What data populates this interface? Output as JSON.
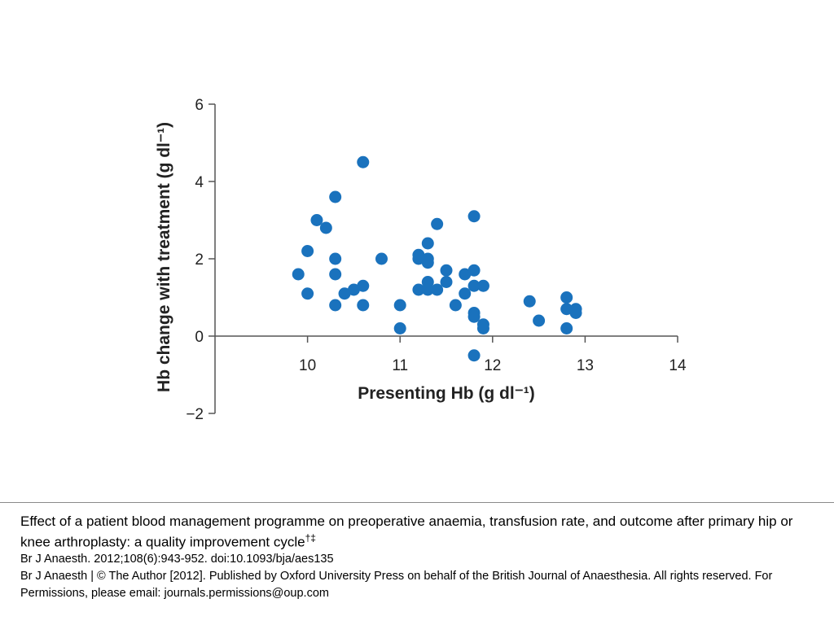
{
  "chart_data": {
    "type": "scatter",
    "title": "",
    "xlabel": "Presenting Hb (g dl⁻¹)",
    "ylabel": "Hb change with treatment (g dl⁻¹)",
    "xlim": [
      9,
      14
    ],
    "ylim": [
      -2,
      6
    ],
    "x_ticks": [
      "10",
      "11",
      "12",
      "13",
      "14"
    ],
    "y_ticks": [
      "−2",
      "0",
      "2",
      "4",
      "6"
    ],
    "grid": false,
    "legend": "none",
    "marker_color": "#1a72bd",
    "series": [
      {
        "points": [
          [
            9.9,
            1.6
          ],
          [
            10.0,
            2.2
          ],
          [
            10.0,
            1.1
          ],
          [
            10.1,
            3.0
          ],
          [
            10.2,
            2.8
          ],
          [
            10.3,
            3.6
          ],
          [
            10.3,
            2.0
          ],
          [
            10.3,
            1.6
          ],
          [
            10.3,
            0.8
          ],
          [
            10.4,
            1.1
          ],
          [
            10.5,
            1.2
          ],
          [
            10.6,
            4.5
          ],
          [
            10.6,
            1.3
          ],
          [
            10.6,
            0.8
          ],
          [
            10.8,
            2.0
          ],
          [
            11.0,
            0.8
          ],
          [
            11.0,
            0.2
          ],
          [
            11.2,
            2.1
          ],
          [
            11.2,
            2.0
          ],
          [
            11.2,
            1.2
          ],
          [
            11.3,
            2.4
          ],
          [
            11.3,
            2.0
          ],
          [
            11.3,
            1.9
          ],
          [
            11.3,
            1.4
          ],
          [
            11.3,
            1.2
          ],
          [
            11.4,
            2.9
          ],
          [
            11.4,
            1.2
          ],
          [
            11.5,
            1.7
          ],
          [
            11.5,
            1.4
          ],
          [
            11.6,
            0.8
          ],
          [
            11.7,
            1.6
          ],
          [
            11.7,
            1.1
          ],
          [
            11.8,
            3.1
          ],
          [
            11.8,
            1.7
          ],
          [
            11.8,
            1.3
          ],
          [
            11.8,
            0.6
          ],
          [
            11.8,
            0.5
          ],
          [
            11.8,
            -0.5
          ],
          [
            11.9,
            1.3
          ],
          [
            11.9,
            0.3
          ],
          [
            11.9,
            0.2
          ],
          [
            12.4,
            0.9
          ],
          [
            12.5,
            0.4
          ],
          [
            12.8,
            1.0
          ],
          [
            12.8,
            0.7
          ],
          [
            12.8,
            0.2
          ],
          [
            12.9,
            0.7
          ],
          [
            12.9,
            0.6
          ]
        ]
      }
    ]
  },
  "caption": {
    "title": "Effect of a patient blood management programme on preoperative anaemia, transfusion rate, and outcome after primary hip or knee arthroplasty: a quality improvement cycle",
    "title_marks": "†‡",
    "citation": "Br J Anaesth. 2012;108(6):943-952. doi:10.1093/bja/aes135",
    "copyright": "Br J Anaesth | © The Author [2012]. Published by Oxford University Press on behalf of the British Journal of Anaesthesia. All rights reserved. For Permissions, please email: journals.permissions@oup.com"
  }
}
